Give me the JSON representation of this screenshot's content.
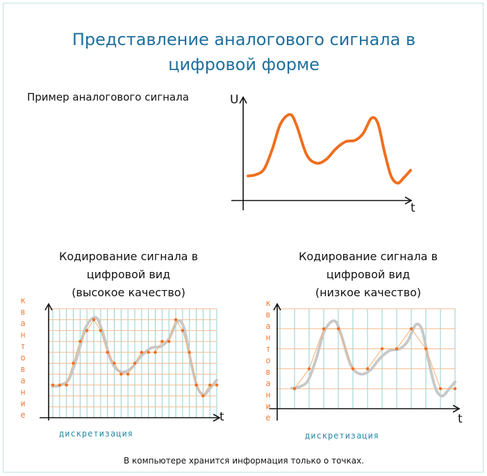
{
  "title": {
    "line1": "Представление аналогового сигнала в",
    "line2": "цифровой форме"
  },
  "analog": {
    "label": "Пример аналогового сигнала",
    "y_axis": "U",
    "x_axis": "t"
  },
  "high": {
    "line1": "Кодирование сигнала в",
    "line2": "цифровой вид",
    "line3": "(высокое качество)",
    "x_axis": "t"
  },
  "low": {
    "line1": "Кодирование сигнала в",
    "line2": "цифровой вид",
    "line3": "(низкое качество)",
    "x_axis": "t"
  },
  "quantization_label": "квантование",
  "discretization_label": "дискретизация",
  "footer": "В компьютере хранится информация только о точках.",
  "colors": {
    "signal": "#f06e1e",
    "signal_gray": "#c8c8c8",
    "grid_v": "#8fcfcf",
    "grid_h": "#f5b98c",
    "title": "#1f6e9c",
    "axis": "#111111"
  }
}
